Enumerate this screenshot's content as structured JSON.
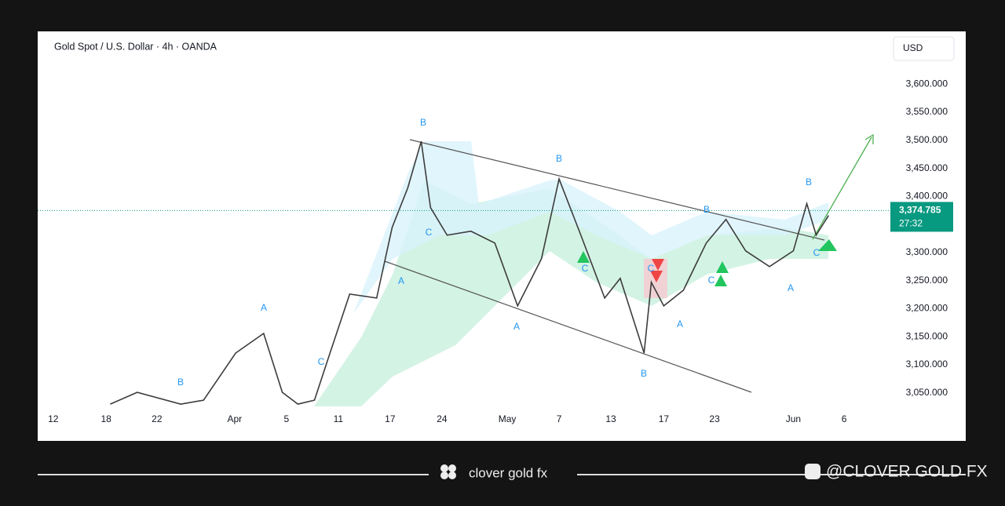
{
  "chart_data": {
    "type": "line",
    "title": "Gold Spot / U.S. Dollar · 4h · OANDA",
    "currency": "USD",
    "x": [
      5.5,
      8.1,
      12.3,
      14.5,
      17.6,
      20.3,
      22.1,
      23.6,
      25.2,
      26.7,
      28.6,
      31.2,
      32.7,
      34.2,
      35.5,
      36.4,
      38.0,
      40.3,
      42.6,
      44.8,
      47.1,
      48.8,
      50.9,
      53.2,
      54.7,
      57.0,
      57.7,
      58.9,
      60.8,
      63.0,
      64.9,
      66.8,
      69.1,
      71.4,
      72.7,
      73.6,
      74.8
    ],
    "series": [
      {
        "name": "XAUUSD",
        "color": "#3c3c3c",
        "values": [
          3030,
          3051,
          3030,
          3037,
          3121,
          3156,
          3051,
          3030,
          3037,
          3121,
          3226,
          3219,
          3345,
          3415,
          3498,
          3380,
          3331,
          3338,
          3317,
          3205,
          3289,
          3431,
          3331,
          3219,
          3254,
          3121,
          3247,
          3205,
          3233,
          3317,
          3359,
          3303,
          3275,
          3303,
          3387,
          3331,
          3366
        ]
      }
    ],
    "xlim": [
      -1.5,
      79.7
    ],
    "xticks": [
      {
        "value": 0,
        "label": "12"
      },
      {
        "value": 5.1,
        "label": "18"
      },
      {
        "value": 10,
        "label": "22"
      },
      {
        "value": 17.5,
        "label": "Apr"
      },
      {
        "value": 22.5,
        "label": "5"
      },
      {
        "value": 27.5,
        "label": "11"
      },
      {
        "value": 32.5,
        "label": "17"
      },
      {
        "value": 37.5,
        "label": "24"
      },
      {
        "value": 43.8,
        "label": "May"
      },
      {
        "value": 48.8,
        "label": "7"
      },
      {
        "value": 53.8,
        "label": "13"
      },
      {
        "value": 58.9,
        "label": "17"
      },
      {
        "value": 63.8,
        "label": "23"
      },
      {
        "value": 71.4,
        "label": "Jun"
      },
      {
        "value": 76.3,
        "label": "6"
      }
    ],
    "ylim": [
      3026,
      3687
    ],
    "yticks": [
      {
        "value": 3050,
        "label": "3,050.000"
      },
      {
        "value": 3100,
        "label": "3,100.000"
      },
      {
        "value": 3150,
        "label": "3,150.000"
      },
      {
        "value": 3200,
        "label": "3,200.000"
      },
      {
        "value": 3250,
        "label": "3,250.000"
      },
      {
        "value": 3300,
        "label": "3,300.000"
      },
      {
        "value": 3350,
        "label": "3,350.000"
      },
      {
        "value": 3400,
        "label": "3,400.000"
      },
      {
        "value": 3450,
        "label": "3,450.000"
      },
      {
        "value": 3500,
        "label": "3,500.000"
      },
      {
        "value": 3550,
        "label": "3,550.000"
      },
      {
        "value": 3600,
        "label": "3,600.000"
      }
    ],
    "last_price": {
      "value": 3374.785,
      "label": "3,374.785"
    },
    "countdown": "27:32",
    "annotations": [
      "B",
      "A",
      "B",
      "C",
      "A",
      "C",
      "A",
      "B",
      "C",
      "B",
      "C",
      "A",
      "B",
      "C",
      "A",
      "B",
      "C"
    ]
  },
  "footer": {
    "brand": "clover gold fx",
    "handle": "@CLOVER GOLD FX"
  }
}
